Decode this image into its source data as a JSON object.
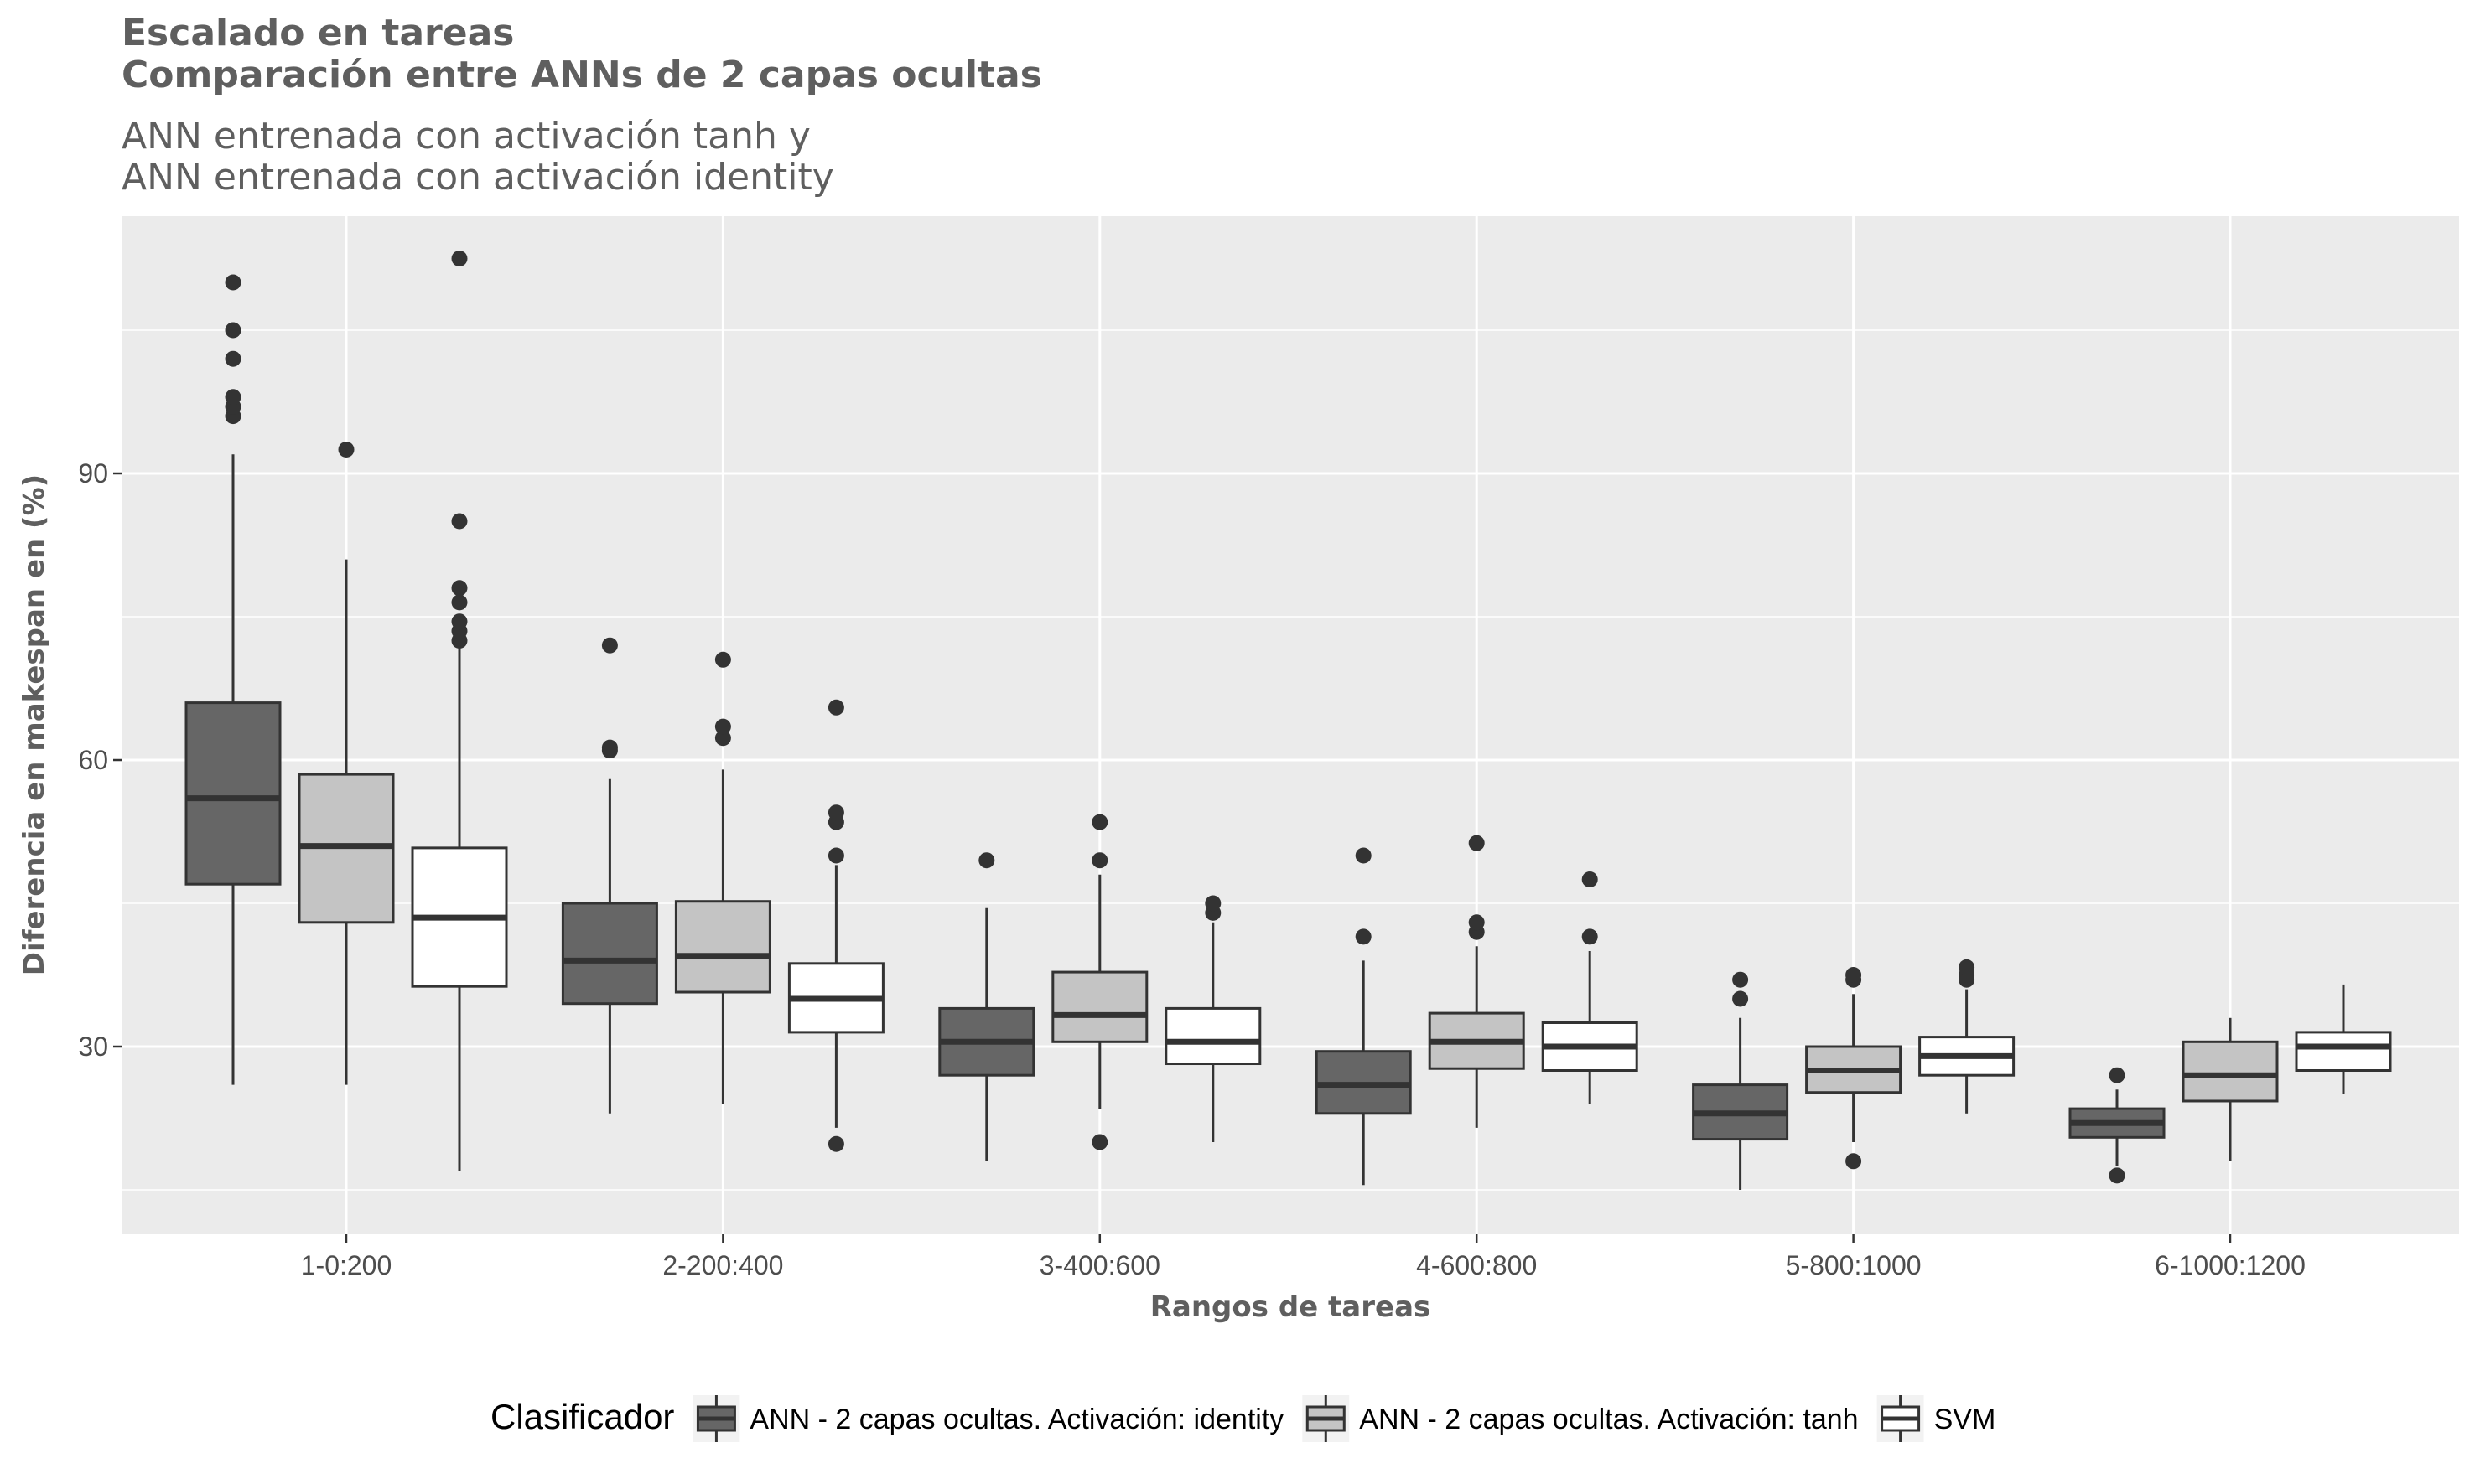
{
  "chart_data": {
    "type": "boxplot",
    "title": "Escalado en tareas",
    "title_line2": "Comparación entre ANNs de 2 capas ocultas",
    "subtitle": "ANN entrenada con activación tanh y",
    "subtitle_line2": "ANN entrenada con activación identity",
    "xlabel": "Rangos de tareas",
    "ylabel": "Diferencia en makespan en (%)",
    "ylim": [
      10,
      117
    ],
    "yticks": [
      30,
      60,
      90
    ],
    "grid": true,
    "legend_position": "bottom",
    "legend_title": "Clasificador",
    "categories": [
      "1-0:200",
      "2-200:400",
      "3-400:600",
      "4-600:800",
      "5-800:1000",
      "6-1000:1200"
    ],
    "series": [
      {
        "name": "ANN - 2 capas ocultas. Activación: identity",
        "fill": "#666666",
        "boxes": [
          {
            "min": 26,
            "q1": 47,
            "median": 56,
            "q3": 66,
            "max": 92,
            "outliers": [
              96,
              97,
              98,
              102,
              105,
              110
            ]
          },
          {
            "min": 23,
            "q1": 34.5,
            "median": 39,
            "q3": 45,
            "max": 58,
            "outliers": [
              61,
              61.3,
              72
            ]
          },
          {
            "min": 18,
            "q1": 27,
            "median": 30.5,
            "q3": 34,
            "max": 44.5,
            "outliers": [
              49.5
            ]
          },
          {
            "min": 15.5,
            "q1": 23,
            "median": 26,
            "q3": 29.5,
            "max": 39,
            "outliers": [
              41.5,
              50
            ]
          },
          {
            "min": 15,
            "q1": 20.3,
            "median": 23,
            "q3": 26,
            "max": 33,
            "outliers": [
              35,
              37
            ]
          },
          {
            "min": 17.5,
            "q1": 20.5,
            "median": 22,
            "q3": 23.5,
            "max": 25.5,
            "outliers": [
              16.5,
              27
            ]
          }
        ]
      },
      {
        "name": "ANN - 2 capas ocultas. Activación: tanh",
        "fill": "#c4c4c4",
        "boxes": [
          {
            "min": 26,
            "q1": 43,
            "median": 51,
            "q3": 58.5,
            "max": 81,
            "outliers": [
              92.5
            ]
          },
          {
            "min": 24,
            "q1": 35.7,
            "median": 39.5,
            "q3": 45.2,
            "max": 59,
            "outliers": [
              62.3,
              63.5,
              70.5
            ]
          },
          {
            "min": 23.5,
            "q1": 30.5,
            "median": 33.3,
            "q3": 37.8,
            "max": 48,
            "outliers": [
              20,
              49.5,
              53.5
            ]
          },
          {
            "min": 21.5,
            "q1": 27.7,
            "median": 30.5,
            "q3": 33.5,
            "max": 40.5,
            "outliers": [
              42,
              43,
              51.3
            ]
          },
          {
            "min": 20,
            "q1": 25.2,
            "median": 27.5,
            "q3": 30,
            "max": 35.5,
            "outliers": [
              18,
              37,
              37.5
            ]
          },
          {
            "min": 18,
            "q1": 24.3,
            "median": 27,
            "q3": 30.5,
            "max": 33,
            "outliers": []
          }
        ]
      },
      {
        "name": "SVM",
        "fill": "#ffffff",
        "boxes": [
          {
            "min": 17,
            "q1": 36.3,
            "median": 43.5,
            "q3": 50.8,
            "max": 72,
            "outliers": [
              72.5,
              73.5,
              74.5,
              76.5,
              78,
              85,
              112.5
            ]
          },
          {
            "min": 21.5,
            "q1": 31.5,
            "median": 35,
            "q3": 38.7,
            "max": 49,
            "outliers": [
              19.8,
              50,
              53.5,
              54.5,
              65.5
            ]
          },
          {
            "min": 20,
            "q1": 28.2,
            "median": 30.5,
            "q3": 34,
            "max": 43,
            "outliers": [
              44,
              45
            ]
          },
          {
            "min": 24,
            "q1": 27.5,
            "median": 30,
            "q3": 32.5,
            "max": 40,
            "outliers": [
              41.5,
              47.5
            ]
          },
          {
            "min": 23,
            "q1": 27,
            "median": 29,
            "q3": 31,
            "max": 36,
            "outliers": [
              37,
              37.5,
              38.3
            ]
          },
          {
            "min": 25,
            "q1": 27.5,
            "median": 30,
            "q3": 31.5,
            "max": 36.5,
            "outliers": []
          }
        ]
      }
    ]
  }
}
